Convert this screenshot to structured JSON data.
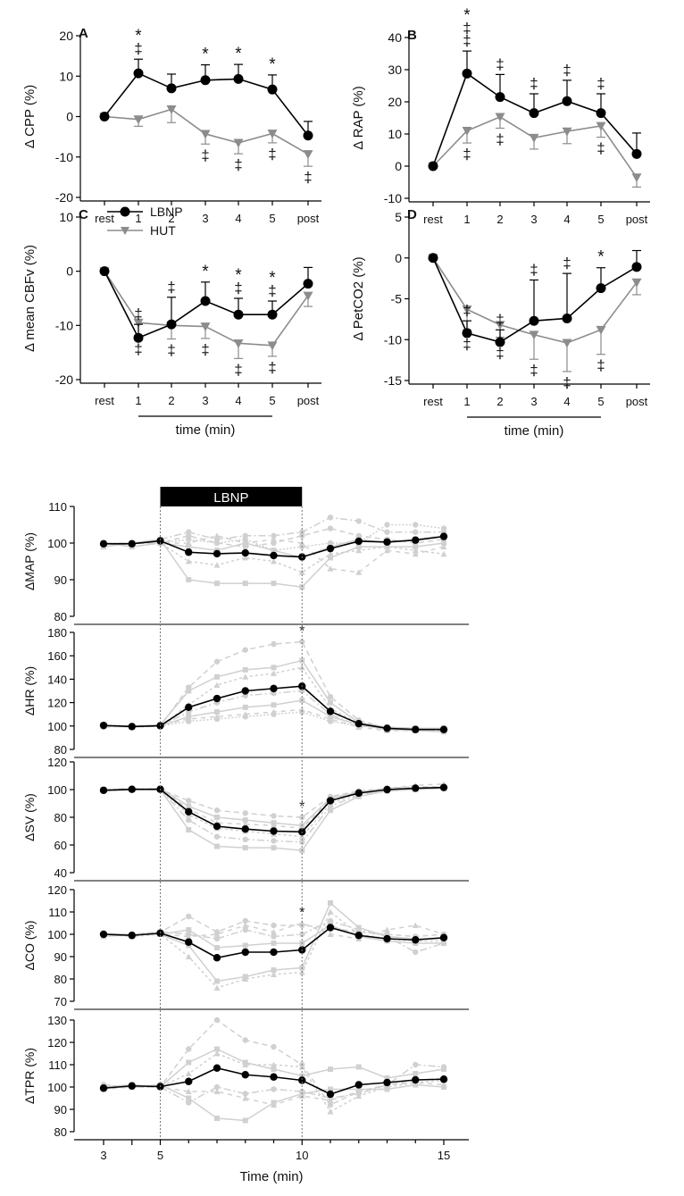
{
  "chart_data": [
    {
      "panel": "A",
      "type": "line",
      "ylabel": "Δ CPP (%)",
      "ylim": [
        -20,
        20
      ],
      "yticks": [
        -20,
        -10,
        0,
        10,
        20
      ],
      "x": [
        "rest",
        "1",
        "2",
        "3",
        "4",
        "5",
        "post"
      ],
      "series": [
        {
          "name": "LBNP",
          "values": [
            0,
            10.7,
            7.0,
            9.0,
            9.3,
            6.7,
            -4.7
          ],
          "err": [
            0,
            3.5,
            3.5,
            3.8,
            3.6,
            3.6,
            3.5
          ]
        },
        {
          "name": "HUT",
          "values": [
            0,
            -0.7,
            1.8,
            -4.3,
            -6.5,
            -4.2,
            -9.3
          ],
          "err": [
            0,
            1.7,
            3.3,
            2.5,
            2.7,
            2.3,
            3.0
          ]
        }
      ],
      "annotations": [
        {
          "x": "1",
          "side": "top",
          "marks": [
            "*",
            "‡"
          ]
        },
        {
          "x": "3",
          "side": "top",
          "marks": [
            "*"
          ]
        },
        {
          "x": "4",
          "side": "top",
          "marks": [
            "*"
          ]
        },
        {
          "x": "5",
          "side": "top",
          "marks": [
            "*"
          ]
        },
        {
          "x": "3",
          "side": "bottom",
          "marks": [
            "‡"
          ]
        },
        {
          "x": "4",
          "side": "bottom",
          "marks": [
            "‡"
          ]
        },
        {
          "x": "5",
          "side": "bottom",
          "marks": [
            "‡"
          ]
        },
        {
          "x": "post",
          "side": "bottom",
          "marks": [
            "‡"
          ]
        }
      ]
    },
    {
      "panel": "B",
      "type": "line",
      "ylabel": "Δ RAP (%)",
      "ylim": [
        -10,
        40
      ],
      "yticks": [
        -10,
        0,
        10,
        20,
        30,
        40
      ],
      "x": [
        "rest",
        "1",
        "2",
        "3",
        "4",
        "5",
        "post"
      ],
      "series": [
        {
          "name": "LBNP",
          "values": [
            0,
            28.8,
            21.5,
            16.5,
            20.2,
            16.5,
            3.8
          ],
          "err": [
            0,
            7.0,
            7.0,
            6.0,
            6.5,
            6.0,
            6.5
          ]
        },
        {
          "name": "HUT",
          "values": [
            0,
            11.0,
            15.3,
            8.8,
            10.8,
            12.5,
            -3.5
          ],
          "err": [
            0,
            3.8,
            3.5,
            3.5,
            3.8,
            3.5,
            3.0
          ]
        }
      ],
      "annotations": [
        {
          "x": "1",
          "side": "top",
          "marks": [
            "*",
            "‡",
            "‡"
          ]
        },
        {
          "x": "2",
          "side": "top",
          "marks": [
            "‡"
          ]
        },
        {
          "x": "3",
          "side": "top",
          "marks": [
            "‡"
          ]
        },
        {
          "x": "4",
          "side": "top",
          "marks": [
            "‡"
          ]
        },
        {
          "x": "5",
          "side": "top",
          "marks": [
            "‡"
          ]
        },
        {
          "x": "1",
          "side": "bottom",
          "marks": [
            "‡"
          ]
        },
        {
          "x": "2",
          "side": "bottom",
          "marks": [
            "‡"
          ]
        },
        {
          "x": "5",
          "side": "bottom",
          "marks": [
            "‡"
          ]
        }
      ]
    },
    {
      "panel": "C",
      "type": "line",
      "ylabel": "Δ mean CBFv (%)",
      "ylim": [
        -20,
        10
      ],
      "yticks": [
        -20,
        -10,
        0,
        10
      ],
      "xlabel": "time (min)",
      "x": [
        "rest",
        "1",
        "2",
        "3",
        "4",
        "5",
        "post"
      ],
      "series": [
        {
          "name": "LBNP",
          "values": [
            0,
            -12.3,
            -9.8,
            -5.5,
            -8.0,
            -8.0,
            -2.3
          ],
          "err": [
            0,
            2.5,
            5.0,
            3.5,
            3.0,
            2.5,
            3.0
          ]
        },
        {
          "name": "HUT",
          "values": [
            0,
            -9.5,
            -10.0,
            -10.2,
            -13.3,
            -13.7,
            -4.5
          ],
          "err": [
            0,
            2.3,
            2.5,
            2.2,
            2.8,
            2.0,
            2.0
          ]
        }
      ],
      "annotations": [
        {
          "x": "1",
          "side": "top",
          "marks": [
            "‡"
          ]
        },
        {
          "x": "2",
          "side": "top",
          "marks": [
            "‡"
          ]
        },
        {
          "x": "3",
          "side": "top",
          "marks": [
            "*"
          ]
        },
        {
          "x": "4",
          "side": "top",
          "marks": [
            "*",
            "‡"
          ]
        },
        {
          "x": "5",
          "side": "top",
          "marks": [
            "*",
            "‡"
          ]
        },
        {
          "x": "1",
          "side": "bottom",
          "marks": [
            "‡"
          ]
        },
        {
          "x": "2",
          "side": "bottom",
          "marks": [
            "‡"
          ]
        },
        {
          "x": "3",
          "side": "bottom",
          "marks": [
            "‡"
          ]
        },
        {
          "x": "4",
          "side": "bottom",
          "marks": [
            "‡"
          ]
        },
        {
          "x": "5",
          "side": "bottom",
          "marks": [
            "‡"
          ]
        }
      ]
    },
    {
      "panel": "D",
      "type": "line",
      "ylabel": "Δ PetCO2 (%)",
      "ylim": [
        -15,
        5
      ],
      "yticks": [
        -15,
        -10,
        -5,
        0,
        5
      ],
      "xlabel": "time (min)",
      "x": [
        "rest",
        "1",
        "2",
        "3",
        "4",
        "5",
        "post"
      ],
      "series": [
        {
          "name": "LBNP",
          "values": [
            0,
            -9.2,
            -10.3,
            -7.7,
            -7.4,
            -3.7,
            -1.1
          ],
          "err": [
            0,
            1.5,
            1.5,
            5.0,
            5.5,
            2.5,
            2.0
          ]
        },
        {
          "name": "HUT",
          "values": [
            0,
            -6.3,
            -8.2,
            -9.4,
            -10.4,
            -8.8,
            -3.0
          ],
          "err": [
            0,
            2.5,
            1.5,
            3.0,
            3.5,
            3.0,
            1.5
          ]
        }
      ],
      "annotations": [
        {
          "x": "1",
          "side": "top",
          "marks": [
            "‡"
          ]
        },
        {
          "x": "2",
          "side": "top",
          "marks": [
            "‡"
          ]
        },
        {
          "x": "3",
          "side": "top",
          "marks": [
            "‡"
          ]
        },
        {
          "x": "4",
          "side": "top",
          "marks": [
            "‡"
          ]
        },
        {
          "x": "5",
          "side": "top",
          "marks": [
            "*"
          ]
        },
        {
          "x": "1",
          "side": "bottom",
          "marks": [
            "‡"
          ]
        },
        {
          "x": "2",
          "side": "bottom",
          "marks": [
            "‡"
          ]
        },
        {
          "x": "3",
          "side": "bottom",
          "marks": [
            "‡"
          ]
        },
        {
          "x": "4",
          "side": "bottom",
          "marks": [
            "‡"
          ]
        },
        {
          "x": "5",
          "side": "bottom",
          "marks": [
            "‡"
          ]
        }
      ]
    },
    {
      "panel": "MAP",
      "type": "line",
      "ylabel": "ΔMAP (%)",
      "ylim": [
        80,
        110
      ],
      "yticks": [
        80,
        90,
        100,
        110
      ],
      "x": [
        3,
        4,
        5,
        6,
        7,
        8,
        9,
        10,
        11,
        12,
        13,
        14,
        15
      ],
      "series": [
        {
          "name": "mean",
          "values": [
            99.8,
            99.8,
            100.6,
            97.5,
            97.1,
            97.3,
            96.6,
            96.2,
            98.5,
            100.5,
            100.3,
            100.8,
            101.8
          ]
        }
      ],
      "individuals": [
        [
          100,
          99,
          100,
          102,
          100,
          99,
          100,
          102,
          104,
          102,
          101,
          100,
          101
        ],
        [
          99,
          100,
          101,
          90,
          89,
          89,
          89,
          88,
          96,
          99,
          99,
          99,
          100
        ],
        [
          100,
          100,
          100,
          95,
          94,
          96,
          95,
          92,
          97,
          98,
          99,
          98,
          97
        ],
        [
          100,
          100,
          101,
          103,
          101,
          102,
          102,
          103,
          107,
          106,
          103,
          103,
          103
        ],
        [
          100,
          99,
          100,
          99,
          98,
          100,
          98,
          96,
          99,
          101,
          100,
          101,
          102
        ],
        [
          99,
          100,
          100,
          100,
          102,
          100,
          101,
          100,
          93,
          92,
          98,
          97,
          99
        ],
        [
          100,
          100,
          100,
          101,
          100,
          101,
          98,
          99,
          100,
          100,
          105,
          105,
          104
        ]
      ]
    },
    {
      "panel": "HR",
      "type": "line",
      "ylabel": "ΔHR (%)",
      "ylim": [
        80,
        180
      ],
      "yticks": [
        80,
        100,
        120,
        140,
        160,
        180
      ],
      "x": [
        3,
        4,
        5,
        6,
        7,
        8,
        9,
        10,
        11,
        12,
        13,
        14,
        15
      ],
      "series": [
        {
          "name": "mean",
          "values": [
            100.5,
            99.5,
            100.2,
            116,
            123.5,
            130,
            132,
            134,
            112.5,
            102,
            98,
            97,
            97
          ]
        }
      ],
      "individuals": [
        [
          100,
          99,
          100,
          133,
          155,
          165,
          170,
          172,
          125,
          105,
          98,
          96,
          97
        ],
        [
          100,
          100,
          101,
          130,
          142,
          148,
          150,
          156,
          120,
          103,
          99,
          98,
          98
        ],
        [
          100,
          99,
          100,
          118,
          135,
          142,
          145,
          150,
          115,
          102,
          97,
          96,
          96
        ],
        [
          99,
          100,
          100,
          112,
          120,
          126,
          128,
          130,
          110,
          100,
          98,
          97,
          98
        ],
        [
          100,
          100,
          100,
          108,
          112,
          116,
          118,
          122,
          108,
          101,
          97,
          96,
          95
        ],
        [
          100,
          99,
          101,
          106,
          108,
          110,
          112,
          114,
          106,
          99,
          96,
          96,
          97
        ],
        [
          100,
          100,
          100,
          104,
          106,
          108,
          110,
          112,
          104,
          100,
          98,
          97,
          97
        ]
      ]
    },
    {
      "panel": "SV",
      "type": "line",
      "ylabel": "ΔSV (%)",
      "ylim": [
        40,
        120
      ],
      "yticks": [
        40,
        60,
        80,
        100,
        120
      ],
      "x": [
        3,
        4,
        5,
        6,
        7,
        8,
        9,
        10,
        11,
        12,
        13,
        14,
        15
      ],
      "series": [
        {
          "name": "mean",
          "values": [
            99.5,
            100.2,
            100.2,
            84,
            73.5,
            71.5,
            70,
            69.5,
            92,
            97.5,
            100,
            101,
            101.5
          ]
        }
      ],
      "individuals": [
        [
          100,
          100,
          100,
          92,
          85,
          83,
          81,
          80,
          95,
          99,
          101,
          102,
          102
        ],
        [
          99,
          100,
          101,
          88,
          80,
          78,
          76,
          74,
          94,
          98,
          100,
          101,
          101
        ],
        [
          100,
          100,
          100,
          82,
          72,
          70,
          68,
          66,
          90,
          97,
          100,
          100,
          101
        ],
        [
          100,
          101,
          100,
          78,
          66,
          64,
          63,
          62,
          88,
          96,
          100,
          101,
          102
        ],
        [
          100,
          100,
          100,
          71,
          59,
          58,
          58,
          56,
          85,
          95,
          99,
          100,
          101
        ],
        [
          99,
          100,
          101,
          86,
          76,
          75,
          74,
          72,
          93,
          98,
          101,
          103,
          104
        ]
      ]
    },
    {
      "panel": "CO",
      "type": "line",
      "ylabel": "ΔCO (%)",
      "ylim": [
        70,
        120
      ],
      "yticks": [
        70,
        80,
        90,
        100,
        110,
        120
      ],
      "x": [
        3,
        4,
        5,
        6,
        7,
        8,
        9,
        10,
        11,
        12,
        13,
        14,
        15
      ],
      "series": [
        {
          "name": "mean",
          "values": [
            100,
            99.5,
            100.5,
            96.5,
            89.5,
            92,
            92,
            93,
            103,
            99.5,
            98,
            97.5,
            98.5
          ]
        }
      ],
      "individuals": [
        [
          100,
          100,
          101,
          108,
          101,
          106,
          104,
          104,
          103,
          101,
          100,
          99,
          100
        ],
        [
          99,
          100,
          100,
          95,
          79,
          81,
          84,
          85,
          114,
          103,
          99,
          98,
          98
        ],
        [
          100,
          99,
          100,
          90,
          76,
          80,
          82,
          83,
          110,
          100,
          98,
          97,
          97
        ],
        [
          100,
          100,
          101,
          100,
          98,
          102,
          99,
          100,
          106,
          102,
          99,
          92,
          96
        ],
        [
          100,
          100,
          100,
          102,
          94,
          95,
          96,
          96,
          104,
          99,
          97,
          96,
          96
        ],
        [
          99,
          100,
          100,
          99,
          100,
          104,
          101,
          105,
          100,
          98,
          102,
          104,
          100
        ]
      ]
    },
    {
      "panel": "TPR",
      "type": "line",
      "ylabel": "ΔTPR (%)",
      "ylim": [
        80,
        130
      ],
      "yticks": [
        80,
        90,
        100,
        110,
        120,
        130
      ],
      "xlabel": "Time (min)",
      "xticks": [
        3,
        5,
        10,
        15
      ],
      "x": [
        3,
        4,
        5,
        6,
        7,
        8,
        9,
        10,
        11,
        12,
        13,
        14,
        15
      ],
      "series": [
        {
          "name": "mean",
          "values": [
            99.5,
            100.5,
            100.2,
            102.5,
            108.5,
            105.5,
            104.5,
            103,
            96.8,
            101,
            102,
            103.2,
            103.5
          ]
        }
      ],
      "individuals": [
        [
          100,
          100,
          100,
          117,
          130,
          121,
          118,
          110,
          92,
          98,
          101,
          103,
          104
        ],
        [
          100,
          101,
          100,
          111,
          117,
          111,
          108,
          105,
          108,
          109,
          104,
          106,
          108
        ],
        [
          100,
          100,
          100,
          106,
          115,
          110,
          110,
          109,
          89,
          96,
          100,
          102,
          103
        ],
        [
          101,
          100,
          100,
          93,
          100,
          97,
          99,
          98,
          95,
          97,
          101,
          110,
          109
        ],
        [
          100,
          100,
          101,
          95,
          86,
          85,
          93,
          97,
          99,
          99,
          99,
          101,
          100
        ],
        [
          99,
          100,
          100,
          98,
          98,
          95,
          92,
          96,
          94,
          98,
          101,
          102,
          101
        ]
      ]
    }
  ],
  "legend": [
    "LBNP",
    "HUT"
  ],
  "lbnp_bar_label": "LBNP",
  "lbnp_window": [
    5,
    10
  ],
  "sig_marker": "*",
  "sig_panels": [
    "HR",
    "SV",
    "CO"
  ],
  "sig_at": 10,
  "colors": {
    "lbnp": "#000000",
    "hut": "#8c8c8c",
    "individual": "#d0d0d0",
    "axis": "#000000"
  }
}
